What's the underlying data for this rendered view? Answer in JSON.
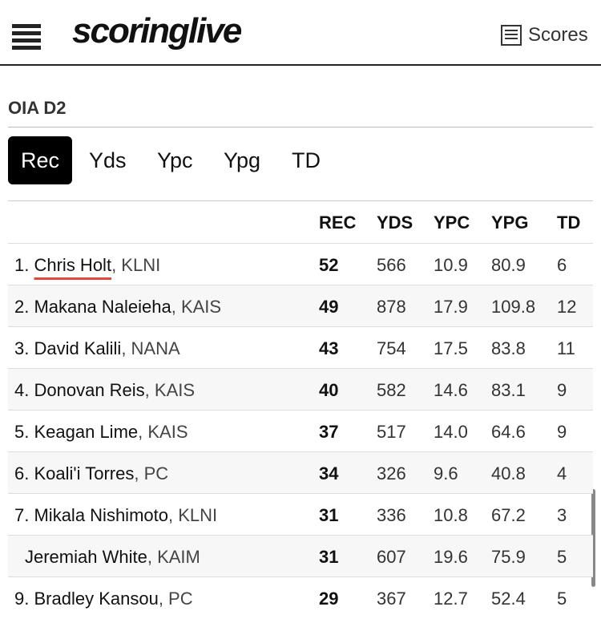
{
  "header": {
    "logo": "scoringlive",
    "scores_link": "Scores"
  },
  "section_title": "OIA D2",
  "tabs": [
    "Rec",
    "Yds",
    "Ypc",
    "Ypg",
    "TD"
  ],
  "table": {
    "columns": [
      "REC",
      "YDS",
      "YPC",
      "YPG",
      "TD"
    ],
    "rows": [
      {
        "rank": "1.",
        "name": "Chris Holt",
        "team": ", KLNI",
        "stats": [
          "52",
          "566",
          "10.9",
          "80.9",
          "6"
        ]
      },
      {
        "rank": "2.",
        "name": "Makana Naleieha",
        "team": ", KAIS",
        "stats": [
          "49",
          "878",
          "17.9",
          "109.8",
          "12"
        ]
      },
      {
        "rank": "3.",
        "name": "David Kalili",
        "team": ", NANA",
        "stats": [
          "43",
          "754",
          "17.5",
          "83.8",
          "11"
        ]
      },
      {
        "rank": "4.",
        "name": "Donovan Reis",
        "team": ", KAIS",
        "stats": [
          "40",
          "582",
          "14.6",
          "83.1",
          "9"
        ]
      },
      {
        "rank": "5.",
        "name": "Keagan Lime",
        "team": ", KAIS",
        "stats": [
          "37",
          "517",
          "14.0",
          "64.6",
          "9"
        ]
      },
      {
        "rank": "6.",
        "name": "Koali'i Torres",
        "team": ", PC",
        "stats": [
          "34",
          "326",
          "9.6",
          "40.8",
          "4"
        ]
      },
      {
        "rank": "7.",
        "name": "Mikala Nishimoto",
        "team": ", KLNI",
        "stats": [
          "31",
          "336",
          "10.8",
          "67.2",
          "3"
        ]
      },
      {
        "rank": null,
        "name": "Jeremiah White",
        "team": ", KAIM",
        "stats": [
          "31",
          "607",
          "19.6",
          "75.9",
          "5"
        ]
      },
      {
        "rank": "9.",
        "name": "Bradley Kansou",
        "team": ", PC",
        "stats": [
          "29",
          "367",
          "12.7",
          "52.4",
          "5"
        ]
      }
    ]
  }
}
